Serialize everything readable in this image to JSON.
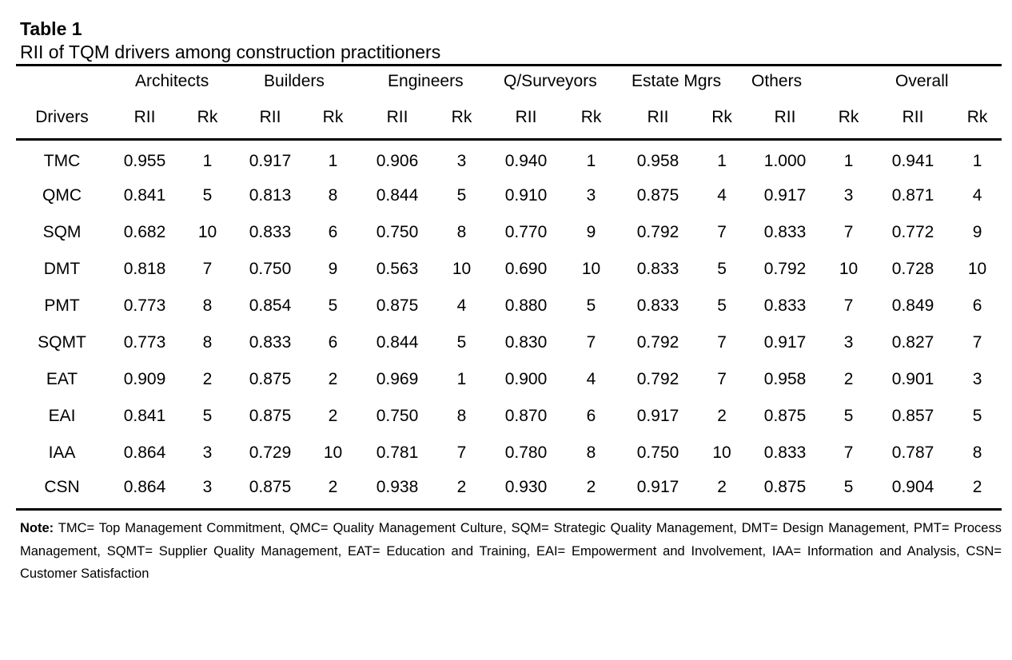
{
  "table_label": "Table 1",
  "table_title": "RII of TQM drivers among construction practitioners",
  "groups": [
    "Architects",
    "Builders",
    "Engineers",
    "Q/Surveyors",
    "Estate Mgrs",
    "Others",
    "Overall"
  ],
  "sub_headers": {
    "drivers": "Drivers",
    "rii": "RII",
    "rk": "Rk"
  },
  "rows": [
    {
      "driver": "TMC",
      "cells": [
        "0.955",
        "1",
        "0.917",
        "1",
        "0.906",
        "3",
        "0.940",
        "1",
        "0.958",
        "1",
        "1.000",
        "1",
        "0.941",
        "1"
      ]
    },
    {
      "driver": "QMC",
      "cells": [
        "0.841",
        "5",
        "0.813",
        "8",
        "0.844",
        "5",
        "0.910",
        "3",
        "0.875",
        "4",
        "0.917",
        "3",
        "0.871",
        "4"
      ]
    },
    {
      "driver": "SQM",
      "cells": [
        "0.682",
        "10",
        "0.833",
        "6",
        "0.750",
        "8",
        "0.770",
        "9",
        "0.792",
        "7",
        "0.833",
        "7",
        "0.772",
        "9"
      ]
    },
    {
      "driver": "DMT",
      "cells": [
        "0.818",
        "7",
        "0.750",
        "9",
        "0.563",
        "10",
        "0.690",
        "10",
        "0.833",
        "5",
        "0.792",
        "10",
        "0.728",
        "10"
      ]
    },
    {
      "driver": "PMT",
      "cells": [
        "0.773",
        "8",
        "0.854",
        "5",
        "0.875",
        "4",
        "0.880",
        "5",
        "0.833",
        "5",
        "0.833",
        "7",
        "0.849",
        "6"
      ]
    },
    {
      "driver": "SQMT",
      "cells": [
        "0.773",
        "8",
        "0.833",
        "6",
        "0.844",
        "5",
        "0.830",
        "7",
        "0.792",
        "7",
        "0.917",
        "3",
        "0.827",
        "7"
      ]
    },
    {
      "driver": "EAT",
      "cells": [
        "0.909",
        "2",
        "0.875",
        "2",
        "0.969",
        "1",
        "0.900",
        "4",
        "0.792",
        "7",
        "0.958",
        "2",
        "0.901",
        "3"
      ]
    },
    {
      "driver": "EAI",
      "cells": [
        "0.841",
        "5",
        "0.875",
        "2",
        "0.750",
        "8",
        "0.870",
        "6",
        "0.917",
        "2",
        "0.875",
        "5",
        "0.857",
        "5"
      ]
    },
    {
      "driver": "IAA",
      "cells": [
        "0.864",
        "3",
        "0.729",
        "10",
        "0.781",
        "7",
        "0.780",
        "8",
        "0.750",
        "10",
        "0.833",
        "7",
        "0.787",
        "8"
      ]
    },
    {
      "driver": "CSN",
      "cells": [
        "0.864",
        "3",
        "0.875",
        "2",
        "0.938",
        "2",
        "0.930",
        "2",
        "0.917",
        "2",
        "0.875",
        "5",
        "0.904",
        "2"
      ]
    }
  ],
  "note": {
    "label": "Note:",
    "text": " TMC= Top Management Commitment, QMC= Quality Management Culture, SQM= Strategic Quality Management, DMT= Design Management, PMT= Process Management, SQMT= Supplier Quality Management, EAT= Education and Training, EAI= Empowerment and Involvement, IAA= Information and Analysis, CSN= Customer Satisfaction"
  }
}
